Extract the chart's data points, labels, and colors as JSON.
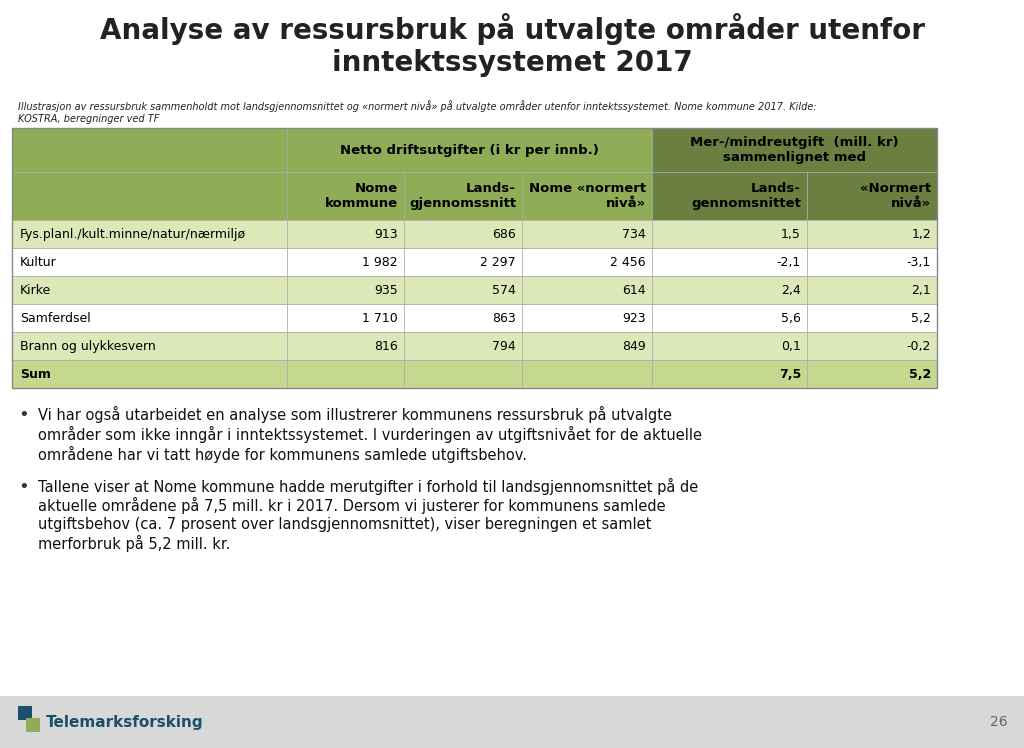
{
  "title": "Analyse av ressursbruk på utvalgte områder utenfor\ninntektssystemet 2017",
  "subtitle": "Illustrasjon av ressursbruk sammenholdt mot landsgjennomsnittet og «normert nivå» på utvalgte områder utenfor inntektssystemet. Nome kommune 2017. Kilde:\nKOSTRA, beregninger ved TF",
  "col_headers_row1_netto": "Netto driftsutgifter (i kr per innb.)",
  "col_headers_row1_mer": "Mer-/mindreutgift  (mill. kr)\nsammenlignet med",
  "col_headers_row2": [
    "",
    "Nome\nkommune",
    "Lands-\ngjennomssnitt",
    "Nome «normert\nnivå»",
    "Lands-\ngennomsnittet",
    "«Normert\nnivå»"
  ],
  "rows": [
    [
      "Fys.planl./kult.minne/natur/nærmiljø",
      "913",
      "686",
      "734",
      "1,5",
      "1,2"
    ],
    [
      "Kultur",
      "1 982",
      "2 297",
      "2 456",
      "-2,1",
      "-3,1"
    ],
    [
      "Kirke",
      "935",
      "574",
      "614",
      "2,4",
      "2,1"
    ],
    [
      "Samferdsel",
      "1 710",
      "863",
      "923",
      "5,6",
      "5,2"
    ],
    [
      "Brann og ulykkesvern",
      "816",
      "794",
      "849",
      "0,1",
      "-0,2"
    ],
    [
      "Sum",
      "",
      "",
      "",
      "7,5",
      "5,2"
    ]
  ],
  "bullet_texts": [
    "Vi har også utarbeidet en analyse som illustrerer kommunens ressursbruk på utvalgte\nområder som ikke inngår i inntektssystemet. I vurderingen av utgiftsnivået for de aktuelle\nområdene har vi tatt høyde for kommunens samlede utgiftsbehov.",
    "Tallene viser at Nome kommune hadde merutgifter i forhold til landsgjennomsnittet på de\naktuelle områdene på 7,5 mill. kr i 2017. Dersom vi justerer for kommunens samlede\nutgiftsbehov (ca. 7 prosent over landsgjennomsnittet), viser beregningen et samlet\nmerforbruk på 5,2 mill. kr."
  ],
  "page_number": "26",
  "bg_color": "#ffffff",
  "footer_bg": "#d8d8d8",
  "header_bg": "#8fac56",
  "header_dark_bg": "#6b8040",
  "row_alt": "#dce8b8",
  "row_white": "#ffffff",
  "sum_row_bg": "#c5d890",
  "title_color": "#222222",
  "logo_text": "Telemarksforsking",
  "logo_color": "#1a4f6e",
  "logo_sq1": "#1a4f6e",
  "logo_sq2": "#8fac56"
}
